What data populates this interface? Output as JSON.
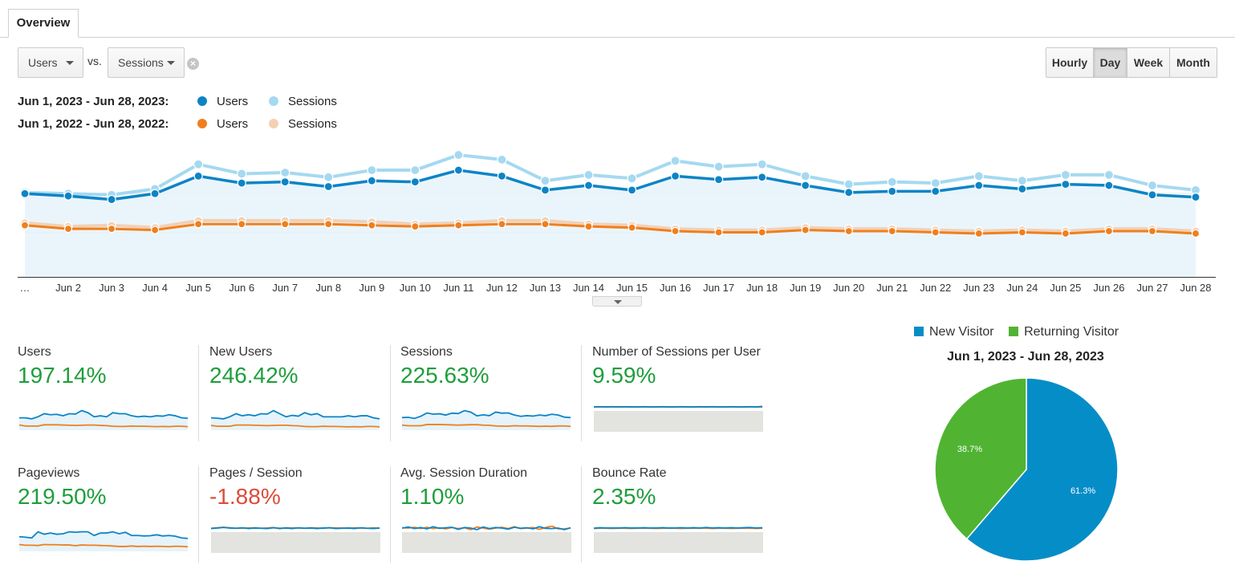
{
  "tabs": {
    "overview": "Overview"
  },
  "controls": {
    "metric_1": "Users",
    "vs_label": "vs.",
    "metric_2": "Sessions",
    "clear_glyph": "×",
    "granularity": [
      "Hourly",
      "Day",
      "Week",
      "Month"
    ],
    "active_granularity": "Day"
  },
  "legend": {
    "current_range": "Jun 1, 2023 - Jun 28, 2023:",
    "previous_range": "Jun 1, 2022 - Jun 28, 2022:",
    "users": "Users",
    "sessions": "Sessions"
  },
  "colors": {
    "users_current": "#0c84c6",
    "sessions_current": "#a5d9f0",
    "users_previous": "#ef7f1e",
    "sessions_previous": "#f3d0b4",
    "positive": "#1e9e3b",
    "negative": "#dd4b39",
    "new_visitor": "#058dc7",
    "returning_visitor": "#50b432"
  },
  "chart_data": [
    {
      "type": "line",
      "title": "Users vs. Sessions",
      "categories": [
        "…",
        "Jun 2",
        "Jun 3",
        "Jun 4",
        "Jun 5",
        "Jun 6",
        "Jun 7",
        "Jun 8",
        "Jun 9",
        "Jun 10",
        "Jun 11",
        "Jun 12",
        "Jun 13",
        "Jun 14",
        "Jun 15",
        "Jun 16",
        "Jun 17",
        "Jun 18",
        "Jun 19",
        "Jun 20",
        "Jun 21",
        "Jun 22",
        "Jun 23",
        "Jun 24",
        "Jun 25",
        "Jun 26",
        "Jun 27",
        "Jun 28"
      ],
      "ylim": [
        0,
        115
      ],
      "series": [
        {
          "name": "Users (Jun 1, 2023 - Jun 28, 2023)",
          "values": [
            71,
            69,
            66,
            71,
            86,
            80,
            81,
            77,
            82,
            81,
            91,
            86,
            74,
            78,
            74,
            86,
            83,
            85,
            78,
            72,
            73,
            73,
            78,
            75,
            79,
            78,
            70,
            68
          ]
        },
        {
          "name": "Sessions (Jun 1, 2023 - Jun 28, 2023)",
          "values": [
            72,
            71,
            70,
            75,
            96,
            88,
            89,
            85,
            91,
            91,
            104,
            100,
            82,
            87,
            84,
            99,
            94,
            96,
            86,
            79,
            81,
            80,
            86,
            82,
            87,
            87,
            78,
            74
          ]
        },
        {
          "name": "Users (Jun 1, 2022 - Jun 28, 2022)",
          "values": [
            44,
            41,
            41,
            40,
            45,
            45,
            45,
            45,
            44,
            43,
            44,
            45,
            45,
            43,
            42,
            39,
            38,
            38,
            40,
            39,
            39,
            38,
            37,
            38,
            37,
            39,
            39,
            37
          ]
        },
        {
          "name": "Sessions (Jun 1, 2022 - Jun 28, 2022)",
          "values": [
            46,
            43,
            44,
            42,
            48,
            48,
            48,
            48,
            47,
            45,
            46,
            48,
            48,
            45,
            44,
            41,
            40,
            40,
            42,
            41,
            41,
            40,
            39,
            40,
            39,
            41,
            41,
            39
          ]
        }
      ]
    },
    {
      "type": "line",
      "title": "Users",
      "summary": "197.14%",
      "series": [
        {
          "name": "Jun 1, 2023 - Jun 28, 2023",
          "values": [
            6,
            6,
            5.5,
            6.5,
            8,
            7.5,
            7.7,
            7,
            8,
            7.8,
            9.5,
            8.5,
            6.5,
            7,
            6.5,
            8.5,
            8,
            8,
            7,
            6.5,
            6.8,
            6.5,
            7,
            6.8,
            7.5,
            7,
            6,
            5.8
          ]
        },
        {
          "name": "Jun 1, 2022 - Jun 28, 2022",
          "values": [
            2.5,
            2,
            2,
            2,
            2.6,
            2.6,
            2.6,
            2.5,
            2.4,
            2.3,
            2.4,
            2.5,
            2.5,
            2.3,
            2.2,
            1.9,
            1.8,
            1.8,
            2,
            1.9,
            1.9,
            1.8,
            1.7,
            1.8,
            1.7,
            1.9,
            1.9,
            1.7
          ]
        }
      ]
    },
    {
      "type": "line",
      "title": "New Users",
      "summary": "246.42%",
      "series": [
        {
          "name": "Jun 1, 2023 - Jun 28, 2023",
          "values": [
            6,
            5.8,
            5.5,
            6.5,
            8,
            7,
            7.5,
            7,
            8,
            7.8,
            9.5,
            8,
            6.5,
            7.2,
            6.8,
            8.5,
            7.5,
            8,
            6.5,
            6.5,
            6.5,
            6.5,
            7,
            6.5,
            7,
            7,
            6,
            5.5
          ]
        },
        {
          "name": "Jun 1, 2022 - Jun 28, 2022",
          "values": [
            2.3,
            1.9,
            1.9,
            1.9,
            2.5,
            2.5,
            2.5,
            2.4,
            2.3,
            2.2,
            2.3,
            2.4,
            2.4,
            2.2,
            2.1,
            1.8,
            1.7,
            1.7,
            1.9,
            1.8,
            1.8,
            1.7,
            1.6,
            1.7,
            1.6,
            1.8,
            1.8,
            1.6
          ]
        }
      ]
    },
    {
      "type": "line",
      "title": "Sessions",
      "summary": "225.63%",
      "series": [
        {
          "name": "Jun 1, 2023 - Jun 28, 2023",
          "values": [
            6,
            6.1,
            5.6,
            6.6,
            8.2,
            7.6,
            7.8,
            7.2,
            8.1,
            7.9,
            9.3,
            8.6,
            6.8,
            7.3,
            6.9,
            8.6,
            8.1,
            8.2,
            7.2,
            6.6,
            6.9,
            6.7,
            7.2,
            6.9,
            7.6,
            7.2,
            6.2,
            6
          ]
        },
        {
          "name": "Jun 1, 2022 - Jun 28, 2022",
          "values": [
            2.4,
            2.1,
            2.1,
            2.1,
            2.7,
            2.7,
            2.7,
            2.6,
            2.5,
            2.4,
            2.5,
            2.6,
            2.6,
            2.4,
            2.3,
            2,
            1.9,
            1.9,
            2.1,
            2,
            2,
            1.9,
            1.8,
            1.9,
            1.8,
            2,
            2,
            1.8
          ]
        }
      ]
    },
    {
      "type": "area",
      "title": "Number of Sessions per User",
      "summary": "9.59%",
      "series": [
        {
          "name": "Jun 1, 2023 - Jun 28, 2023",
          "values": [
            9,
            9.1,
            9,
            9.1,
            9,
            9.1,
            9,
            9,
            9.1,
            9,
            9,
            9.1,
            9,
            9,
            9.1,
            9,
            9,
            9.1,
            9,
            9.1,
            9,
            9,
            9.1,
            9,
            9,
            9.1,
            9,
            9.2
          ]
        },
        {
          "name": "Jun 1, 2022 - Jun 28, 2022",
          "values": [
            9,
            9,
            9,
            9,
            9,
            9,
            9,
            9,
            9,
            9,
            9,
            9,
            9,
            9,
            9,
            9,
            9,
            9,
            9,
            9,
            9,
            9,
            9,
            9,
            9,
            9,
            9,
            9
          ]
        }
      ]
    },
    {
      "type": "line",
      "title": "Pageviews",
      "summary": "219.50%",
      "series": [
        {
          "name": "Jun 1, 2023 - Jun 28, 2023",
          "values": [
            6,
            5.8,
            5.5,
            8,
            7,
            7.5,
            7,
            7.2,
            8,
            7.8,
            8,
            8,
            6.5,
            7.5,
            7.5,
            8,
            7.2,
            7.8,
            6.5,
            6.5,
            6.3,
            6.4,
            6.8,
            6.3,
            6.5,
            6.2,
            5.5,
            5.3
          ]
        },
        {
          "name": "Jun 1, 2022 - Jun 28, 2022",
          "values": [
            2.8,
            2.5,
            2.5,
            2.4,
            2.8,
            2.7,
            2.7,
            2.6,
            2.6,
            2.3,
            2.6,
            2.5,
            2.5,
            2.4,
            2.3,
            2.2,
            2,
            2,
            2.2,
            2,
            2.1,
            2,
            2.1,
            2,
            1.9,
            2.1,
            2,
            1.9
          ]
        }
      ]
    },
    {
      "type": "area",
      "title": "Pages / Session",
      "summary": "-1.88%",
      "series": [
        {
          "name": "Jun 1, 2023 - Jun 28, 2023",
          "values": [
            6.6,
            6.8,
            7,
            6.8,
            6.7,
            6.9,
            6.6,
            6.8,
            6.7,
            6.6,
            6.9,
            6.7,
            6.8,
            6.6,
            6.9,
            6.7,
            6.8,
            6.6,
            6.8,
            6.9,
            6.6,
            6.7,
            6.8,
            6.6,
            6.9,
            6.7,
            6.6,
            6.8
          ]
        },
        {
          "name": "Jun 1, 2022 - Jun 28, 2022",
          "values": [
            6.7,
            6.9,
            7.1,
            6.9,
            6.7,
            6.7,
            6.8,
            6.9,
            6.7,
            6.8,
            7,
            6.5,
            6.9,
            6.8,
            6.8,
            6.7,
            6.9,
            6.8,
            6.7,
            6.9,
            6.8,
            6.8,
            6.7,
            6.9,
            6.8,
            6.7,
            6.9,
            6.7
          ]
        }
      ]
    },
    {
      "type": "area",
      "title": "Avg. Session Duration",
      "summary": "1.10%",
      "series": [
        {
          "name": "Jun 1, 2023 - Jun 28, 2023",
          "values": [
            6.8,
            7.2,
            6.6,
            7,
            6.5,
            7.3,
            6.7,
            6.9,
            7.1,
            6.3,
            7,
            6.8,
            6.2,
            7.2,
            6.6,
            7,
            6.8,
            6.4,
            7.1,
            6.7,
            6.9,
            6.5,
            7.3,
            6.7,
            6.6,
            6.8,
            6.2,
            6.9
          ]
        },
        {
          "name": "Jun 1, 2022 - Jun 28, 2022",
          "values": [
            6.9,
            6.8,
            7.1,
            6.6,
            7.1,
            6.6,
            6.9,
            6.5,
            7,
            6.6,
            6.9,
            6.2,
            7.2,
            6.8,
            6.4,
            6.8,
            7.1,
            6.6,
            7.3,
            6.6,
            6.8,
            7,
            6.3,
            7,
            7.6,
            6.5,
            6.5,
            6.8
          ]
        }
      ]
    },
    {
      "type": "area",
      "title": "Bounce Rate",
      "summary": "2.35%",
      "series": [
        {
          "name": "Jun 1, 2023 - Jun 28, 2023",
          "values": [
            6.7,
            6.9,
            6.8,
            6.8,
            6.8,
            6.9,
            6.8,
            6.8,
            6.9,
            6.8,
            6.8,
            6.9,
            6.8,
            6.8,
            6.9,
            6.8,
            6.9,
            6.8,
            7,
            6.8,
            6.9,
            6.8,
            6.9,
            6.8,
            6.9,
            7,
            6.8,
            6.9
          ]
        },
        {
          "name": "Jun 1, 2022 - Jun 28, 2022",
          "values": [
            6.6,
            6.7,
            6.7,
            6.6,
            6.7,
            6.7,
            6.6,
            6.7,
            6.7,
            6.7,
            6.6,
            6.7,
            6.7,
            6.7,
            6.6,
            6.7,
            6.7,
            6.7,
            6.7,
            6.6,
            6.7,
            6.7,
            6.6,
            6.7,
            6.7,
            6.7,
            6.6,
            6.7
          ]
        }
      ]
    },
    {
      "type": "pie",
      "title": "Jun 1, 2023 - Jun 28, 2023",
      "slices": [
        {
          "name": "New Visitor",
          "value": 61.3,
          "label": "61.3%"
        },
        {
          "name": "Returning Visitor",
          "value": 38.7,
          "label": "38.7%"
        }
      ]
    }
  ]
}
